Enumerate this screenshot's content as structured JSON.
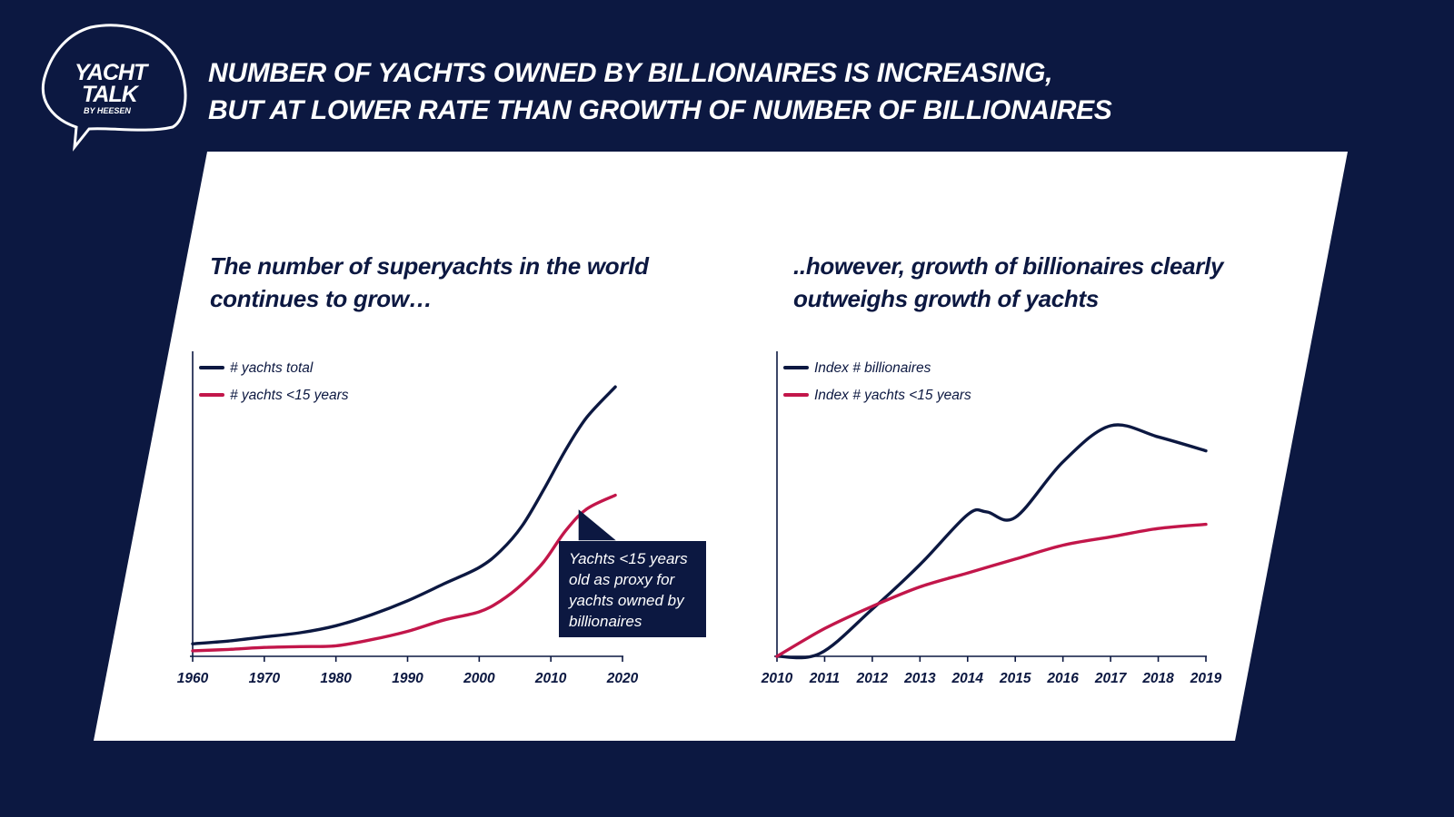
{
  "header": {
    "logo": {
      "line1": "YACHT",
      "line2": "TALK",
      "line3": "BY HEESEN"
    },
    "title_line1": "NUMBER OF YACHTS OWNED BY BILLIONAIRES IS INCREASING,",
    "title_line2": "BUT AT LOWER RATE THAN GROWTH OF NUMBER OF BILLIONAIRES"
  },
  "left_panel": {
    "subtitle_line1": "The number of superyachts in the world",
    "subtitle_line2": "continues to grow…",
    "callout": {
      "line1": "Yachts <15 years",
      "line2": "old as proxy for",
      "line3": "yachts owned by",
      "line4": "billionaires"
    }
  },
  "right_panel": {
    "subtitle_line1": "..however, growth of billionaires clearly",
    "subtitle_line2": "outweighs growth of yachts"
  },
  "colors": {
    "navy": "#0c1841",
    "crimson": "#c2164a",
    "white": "#ffffff"
  },
  "chart_data": [
    {
      "type": "line",
      "xlabel": "",
      "ylabel": "",
      "xlim": [
        1960,
        2020
      ],
      "ylim": [
        0,
        100
      ],
      "y_axis_labels": "none",
      "x_ticks": [
        "1960",
        "1970",
        "1980",
        "1990",
        "2000",
        "2010",
        "2020"
      ],
      "legend": "top-left",
      "series": [
        {
          "name": "# yachts total",
          "color": "#0c1841",
          "x": [
            1960,
            1965,
            1970,
            1975,
            1980,
            1985,
            1990,
            1995,
            2000,
            2003,
            2006,
            2009,
            2012,
            2015,
            2019
          ],
          "y": [
            4.5,
            5.5,
            7,
            8.5,
            11,
            15,
            20,
            26,
            32,
            38,
            47,
            60,
            74,
            86,
            97
          ]
        },
        {
          "name": "# yachts <15 years",
          "color": "#c2164a",
          "x": [
            1960,
            1965,
            1970,
            1975,
            1980,
            1985,
            1990,
            1995,
            2000,
            2003,
            2006,
            2009,
            2012,
            2015,
            2019
          ],
          "y": [
            2,
            2.5,
            3.2,
            3.5,
            3.8,
            6,
            9,
            13,
            16,
            20,
            26,
            34,
            45,
            53,
            58
          ]
        }
      ]
    },
    {
      "type": "line",
      "xlabel": "",
      "ylabel": "",
      "xlim": [
        2010,
        2019
      ],
      "ylim": [
        0,
        100
      ],
      "y_axis_labels": "none",
      "x_ticks": [
        "2010",
        "2011",
        "2012",
        "2013",
        "2014",
        "2015",
        "2016",
        "2017",
        "2018",
        "2019"
      ],
      "legend": "top-left",
      "series": [
        {
          "name": "Index # billionaires",
          "color": "#0c1841",
          "x": [
            2010,
            2010.9,
            2012,
            2013,
            2014,
            2014.4,
            2015,
            2016,
            2017,
            2018,
            2019
          ],
          "y": [
            0,
            1,
            17,
            33,
            51,
            52,
            50,
            70,
            83,
            79,
            74
          ]
        },
        {
          "name": "Index # yachts <15 years",
          "color": "#c2164a",
          "x": [
            2010,
            2011,
            2012,
            2013,
            2014,
            2015,
            2016,
            2017,
            2018,
            2019
          ],
          "y": [
            0,
            10,
            18,
            25,
            30,
            35,
            40,
            43,
            46,
            47.5
          ]
        }
      ]
    }
  ]
}
